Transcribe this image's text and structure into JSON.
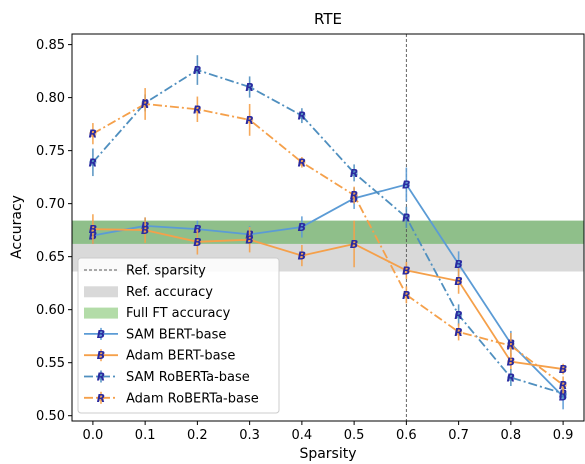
{
  "chart_data": {
    "type": "line",
    "title": "RTE",
    "xlabel": "Sparsity",
    "ylabel": "Accuracy",
    "xlim": [
      -0.04,
      0.94
    ],
    "ylim": [
      0.495,
      0.86
    ],
    "xticks": [
      0.0,
      0.1,
      0.2,
      0.3,
      0.4,
      0.5,
      0.6,
      0.7,
      0.8,
      0.9
    ],
    "xtick_labels": [
      "0.0",
      "0.1",
      "0.2",
      "0.3",
      "0.4",
      "0.5",
      "0.6",
      "0.7",
      "0.8",
      "0.9"
    ],
    "yticks": [
      0.5,
      0.55,
      0.6,
      0.65,
      0.7,
      0.75,
      0.8,
      0.85
    ],
    "ytick_labels": [
      "0.50",
      "0.55",
      "0.60",
      "0.65",
      "0.70",
      "0.75",
      "0.80",
      "0.85"
    ],
    "grid": false,
    "legend_position": "lower-left",
    "x": [
      0.0,
      0.1,
      0.2,
      0.3,
      0.4,
      0.5,
      0.6,
      0.7,
      0.8,
      0.9
    ],
    "ref_sparsity": 0.6,
    "ref_accuracy_band": [
      0.636,
      0.662
    ],
    "full_ft_accuracy_band": [
      0.662,
      0.684
    ],
    "series": [
      {
        "name": "SAM BERT-base",
        "color": "#5b9bd5",
        "linestyle": "solid",
        "marker": "B",
        "values": [
          0.67,
          0.679,
          0.676,
          0.671,
          0.678,
          0.705,
          0.718,
          0.643,
          0.568,
          0.518
        ],
        "errors": [
          0.008,
          0.008,
          0.008,
          0.008,
          0.01,
          0.01,
          0.016,
          0.012,
          0.012,
          0.012
        ]
      },
      {
        "name": "Adam BERT-base",
        "color": "#f5a04a",
        "linestyle": "solid",
        "marker": "B",
        "values": [
          0.676,
          0.675,
          0.664,
          0.666,
          0.651,
          0.662,
          0.637,
          0.627,
          0.551,
          0.544
        ],
        "errors": [
          0.014,
          0.012,
          0.012,
          0.012,
          0.01,
          0.022,
          0.008,
          0.012,
          0.008,
          0.005
        ]
      },
      {
        "name": "SAM RoBERTa-base",
        "color": "#4f8fbf",
        "linestyle": "dashdot",
        "marker": "R",
        "values": [
          0.739,
          0.795,
          0.826,
          0.81,
          0.783,
          0.729,
          0.687,
          0.595,
          0.536,
          0.521
        ],
        "errors": [
          0.013,
          0.008,
          0.014,
          0.01,
          0.007,
          0.008,
          0.01,
          0.01,
          0.008,
          0.005
        ]
      },
      {
        "name": "Adam RoBERTa-base",
        "color": "#f5a04a",
        "linestyle": "dashdot",
        "marker": "R",
        "values": [
          0.766,
          0.794,
          0.789,
          0.779,
          0.739,
          0.708,
          0.614,
          0.579,
          0.566,
          0.529
        ],
        "errors": [
          0.01,
          0.015,
          0.012,
          0.015,
          0.005,
          0.008,
          0.008,
          0.008,
          0.012,
          0.008
        ]
      }
    ],
    "legend": [
      {
        "label": "Ref. sparsity",
        "kind": "vline"
      },
      {
        "label": "Ref. accuracy",
        "kind": "gray-band"
      },
      {
        "label": "Full FT accuracy",
        "kind": "green-band"
      },
      {
        "label": "SAM BERT-base",
        "kind": "series",
        "series": 0
      },
      {
        "label": "Adam BERT-base",
        "kind": "series",
        "series": 1
      },
      {
        "label": "SAM RoBERTa-base",
        "kind": "series",
        "series": 2
      },
      {
        "label": "Adam RoBERTa-base",
        "kind": "series",
        "series": 3
      }
    ],
    "colors": {
      "ref_band": "#d9d9d9",
      "full_ft_band": "#8fbf8a",
      "full_ft_legend": "#b3dca8",
      "vline": "#555555",
      "marker_letter": "#2a2aa0"
    }
  }
}
